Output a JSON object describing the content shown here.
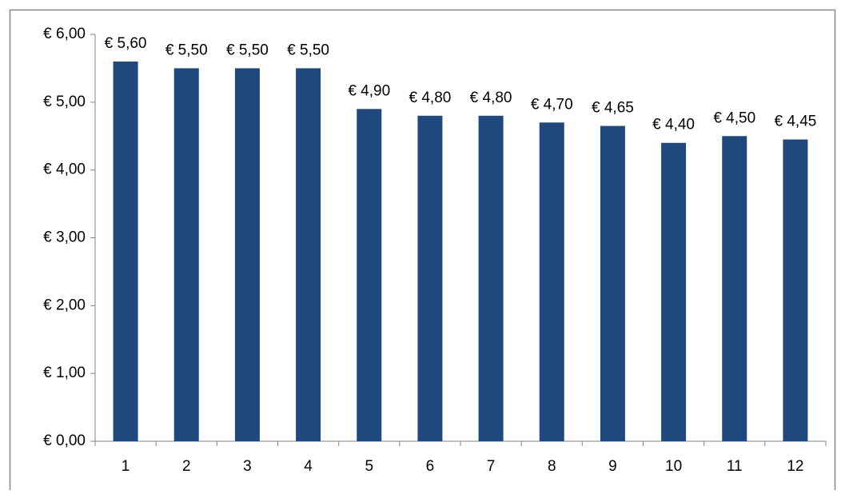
{
  "chart_data": {
    "type": "bar",
    "categories": [
      "1",
      "2",
      "3",
      "4",
      "5",
      "6",
      "7",
      "8",
      "9",
      "10",
      "11",
      "12"
    ],
    "values": [
      5.6,
      5.5,
      5.5,
      5.5,
      4.9,
      4.8,
      4.8,
      4.7,
      4.65,
      4.4,
      4.5,
      4.45
    ],
    "value_labels": [
      "€ 5,60",
      "€ 5,50",
      "€ 5,50",
      "€ 5,50",
      "€ 4,90",
      "€ 4,80",
      "€ 4,80",
      "€ 4,70",
      "€ 4,65",
      "€ 4,40",
      "€ 4,50",
      "€ 4,45"
    ],
    "color": "#1f497d",
    "ylim": [
      0,
      6
    ],
    "yticks": [
      {
        "value": 0,
        "label": "€ 0,00"
      },
      {
        "value": 1,
        "label": "€ 1,00"
      },
      {
        "value": 2,
        "label": "€ 2,00"
      },
      {
        "value": 3,
        "label": "€ 3,00"
      },
      {
        "value": 4,
        "label": "€ 4,00"
      },
      {
        "value": 5,
        "label": "€ 5,00"
      },
      {
        "value": 6,
        "label": "€ 6,00"
      }
    ],
    "grid": false
  }
}
